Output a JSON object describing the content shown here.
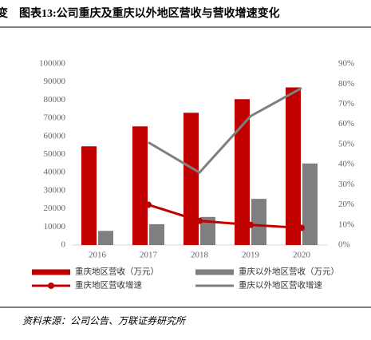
{
  "fragment": "变",
  "chart_data": {
    "type": "bar",
    "title": "图表13:公司重庆及重庆以外地区营收与营收增速变化",
    "source": "资料来源：公司公告、万联证券研究所",
    "categories": [
      "2016",
      "2017",
      "2018",
      "2019",
      "2020"
    ],
    "series": [
      {
        "name": "重庆地区营收（万元）",
        "type": "bar",
        "color": "#c00000",
        "values": [
          54500,
          65500,
          73000,
          80500,
          87000
        ]
      },
      {
        "name": "重庆以外地区营收（万元）",
        "type": "bar",
        "color": "#7f7f7f",
        "values": [
          7800,
          11500,
          15500,
          25500,
          45000
        ]
      },
      {
        "name": "重庆地区营收增速",
        "type": "line",
        "axis": "y2",
        "color": "#c00000",
        "markers": true,
        "values": [
          null,
          20,
          12,
          10,
          8.5
        ]
      },
      {
        "name": "重庆以外地区营收增速",
        "type": "line",
        "axis": "y2",
        "color": "#7f7f7f",
        "markers": false,
        "values": [
          null,
          51,
          36,
          64,
          78
        ]
      }
    ],
    "ylim": [
      0,
      100000
    ],
    "yticks": [
      0,
      10000,
      20000,
      30000,
      40000,
      50000,
      60000,
      70000,
      80000,
      90000,
      100000
    ],
    "y2lim": [
      0,
      90
    ],
    "y2ticks": [
      {
        "value": 0,
        "label": "0%"
      },
      {
        "value": 10,
        "label": "10%"
      },
      {
        "value": 20,
        "label": "20%"
      },
      {
        "value": 30,
        "label": "30%"
      },
      {
        "value": 40,
        "label": "40%"
      },
      {
        "value": 50,
        "label": "50%"
      },
      {
        "value": 60,
        "label": "60%"
      },
      {
        "value": 70,
        "label": "70%"
      },
      {
        "value": 80,
        "label": "80%"
      },
      {
        "value": 90,
        "label": "90%"
      }
    ],
    "grid": false
  }
}
